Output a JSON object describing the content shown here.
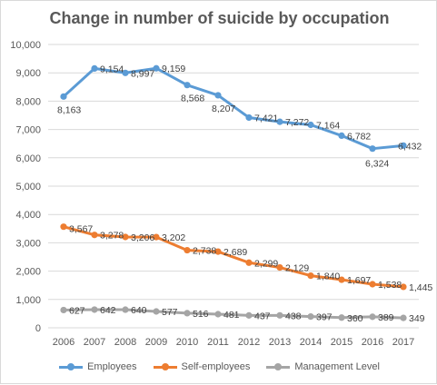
{
  "chart_data": {
    "type": "line",
    "title": "Change in number of suicide by occupation",
    "xlabel": "",
    "ylabel": "",
    "ylim": [
      0,
      10000
    ],
    "yticks": [
      "0",
      "1,000",
      "2,000",
      "3,000",
      "4,000",
      "5,000",
      "6,000",
      "7,000",
      "8,000",
      "9,000",
      "10,000"
    ],
    "categories": [
      "2006",
      "2007",
      "2008",
      "2009",
      "2010",
      "2011",
      "2012",
      "2013",
      "2014",
      "2015",
      "2016",
      "2017"
    ],
    "grid": true,
    "legend": "bottom",
    "series": [
      {
        "name": "Employees",
        "color": "#5b9bd5",
        "values": [
          8163,
          9154,
          8997,
          9159,
          8568,
          8207,
          7421,
          7272,
          7164,
          6782,
          6324,
          6432
        ],
        "labels": [
          "8,163",
          "9,154",
          "8,997",
          "9,159",
          "8,568",
          "8,207",
          "7,421",
          "7,272",
          "7,164",
          "6,782",
          "6,324",
          "6,432"
        ]
      },
      {
        "name": "Self-employees",
        "color": "#ed7d31",
        "values": [
          3567,
          3278,
          3206,
          3202,
          2738,
          2689,
          2299,
          2129,
          1840,
          1697,
          1538,
          1445
        ],
        "labels": [
          "3,567",
          "3,278",
          "3,206",
          "3,202",
          "2,738",
          "2,689",
          "2,299",
          "2,129",
          "1,840",
          "1,697",
          "1,538",
          "1,445"
        ]
      },
      {
        "name": "Management Level",
        "color": "#a5a5a5",
        "values": [
          627,
          642,
          640,
          577,
          516,
          481,
          437,
          438,
          397,
          360,
          389,
          349
        ],
        "labels": [
          "627",
          "642",
          "640",
          "577",
          "516",
          "481",
          "437",
          "438",
          "397",
          "360",
          "389",
          "349"
        ]
      }
    ]
  }
}
